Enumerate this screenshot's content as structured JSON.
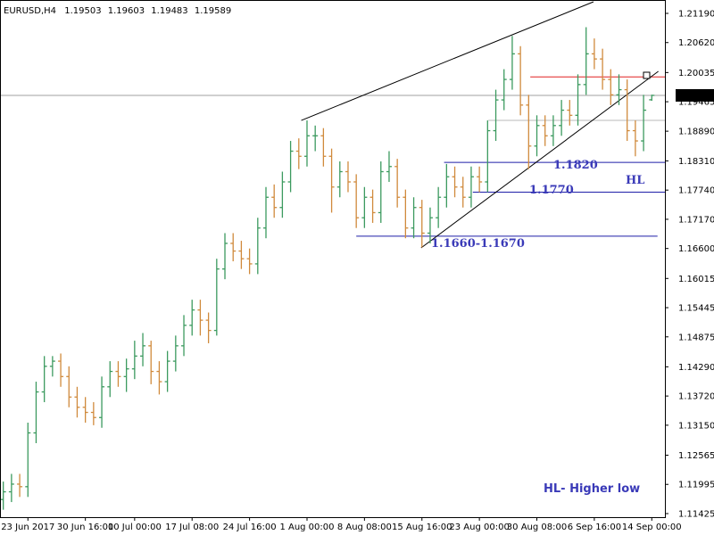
{
  "chart_data": {
    "type": "ohlc",
    "title": "EURUSD,H4",
    "up_color": "#3c9a5f",
    "down_color": "#d08a3c",
    "grid": false,
    "xlim": [
      -0.4,
      80.6
    ],
    "ylim": [
      1.11355,
      1.21451
    ],
    "xticks": [
      {
        "value": 3,
        "label": "23 Jun 2017"
      },
      {
        "value": 10,
        "label": "30 Jun 16:00"
      },
      {
        "value": 16,
        "label": "10 Jul 00:00"
      },
      {
        "value": 23,
        "label": "17 Jul 08:00"
      },
      {
        "value": 30,
        "label": "24 Jul 16:00"
      },
      {
        "value": 37,
        "label": "1 Aug 00:00"
      },
      {
        "value": 44,
        "label": "8 Aug 08:00"
      },
      {
        "value": 51,
        "label": "15 Aug 16:00"
      },
      {
        "value": 58,
        "label": "23 Aug 00:00"
      },
      {
        "value": 65,
        "label": "30 Aug 08:00"
      },
      {
        "value": 72,
        "label": "6 Sep 16:00"
      },
      {
        "value": 79,
        "label": "14 Sep 00:00"
      }
    ],
    "yticks": [
      {
        "value": 1.2119,
        "label": "1.21190"
      },
      {
        "value": 1.2062,
        "label": "1.20620"
      },
      1.20035,
      1.19465,
      {
        "value": 1.1889,
        "label": "1.18890"
      },
      {
        "value": 1.1831,
        "label": "1.18310"
      },
      {
        "value": 1.1774,
        "label": "1.17740"
      },
      {
        "value": 1.1717,
        "label": "1.17170"
      },
      {
        "value": 1.166,
        "label": "1.16600"
      },
      1.16015,
      1.15445,
      1.14875,
      {
        "value": 1.1429,
        "label": "1.14290"
      },
      {
        "value": 1.1372,
        "label": "1.13720"
      },
      {
        "value": 1.1315,
        "label": "1.13150"
      },
      1.12565,
      1.11995,
      1.11425
    ],
    "open": [
      1.117,
      1.1185,
      1.12,
      1.1195,
      1.13,
      1.138,
      1.143,
      1.144,
      1.141,
      1.137,
      1.135,
      1.134,
      1.133,
      1.139,
      1.142,
      1.141,
      1.1425,
      1.145,
      1.147,
      1.142,
      1.14,
      1.144,
      1.147,
      1.151,
      1.154,
      1.152,
      1.15,
      1.162,
      1.167,
      1.1655,
      1.164,
      1.163,
      1.17,
      1.176,
      1.174,
      1.179,
      1.185,
      1.184,
      1.188,
      1.188,
      1.184,
      1.178,
      1.181,
      1.179,
      1.172,
      1.176,
      1.173,
      1.181,
      1.182,
      1.176,
      1.17,
      1.174,
      1.169,
      1.172,
      1.176,
      1.18,
      1.178,
      1.176,
      1.18,
      1.179,
      1.189,
      1.195,
      1.199,
      1.204,
      1.194,
      1.186,
      1.19,
      1.188,
      1.19,
      1.193,
      1.192,
      1.198,
      1.204,
      1.203,
      1.199,
      1.196,
      1.197,
      1.189,
      1.187,
      1.19503
    ],
    "high": [
      1.1205,
      1.122,
      1.122,
      1.132,
      1.14,
      1.145,
      1.145,
      1.1455,
      1.143,
      1.139,
      1.137,
      1.136,
      1.141,
      1.144,
      1.144,
      1.1445,
      1.148,
      1.1495,
      1.148,
      1.144,
      1.146,
      1.149,
      1.153,
      1.156,
      1.156,
      1.1535,
      1.164,
      1.169,
      1.169,
      1.1675,
      1.166,
      1.172,
      1.178,
      1.1785,
      1.181,
      1.187,
      1.1875,
      1.191,
      1.19,
      1.1895,
      1.1855,
      1.183,
      1.183,
      1.1805,
      1.178,
      1.1775,
      1.183,
      1.185,
      1.1835,
      1.1775,
      1.176,
      1.1755,
      1.174,
      1.178,
      1.1825,
      1.182,
      1.18,
      1.182,
      1.182,
      1.191,
      1.197,
      1.201,
      1.2075,
      1.2055,
      1.196,
      1.192,
      1.192,
      1.192,
      1.195,
      1.195,
      1.2,
      1.2092,
      1.207,
      1.205,
      1.201,
      1.2,
      1.199,
      1.191,
      1.196,
      1.19603
    ],
    "low": [
      1.115,
      1.1165,
      1.1175,
      1.1175,
      1.128,
      1.136,
      1.141,
      1.139,
      1.135,
      1.133,
      1.132,
      1.1315,
      1.131,
      1.137,
      1.139,
      1.138,
      1.1405,
      1.143,
      1.1395,
      1.1375,
      1.138,
      1.142,
      1.145,
      1.149,
      1.149,
      1.1475,
      1.149,
      1.16,
      1.1635,
      1.162,
      1.161,
      1.161,
      1.168,
      1.172,
      1.172,
      1.177,
      1.1815,
      1.182,
      1.185,
      1.182,
      1.173,
      1.176,
      1.177,
      1.17,
      1.17,
      1.171,
      1.171,
      1.179,
      1.174,
      1.168,
      1.168,
      1.1662,
      1.167,
      1.17,
      1.174,
      1.176,
      1.174,
      1.174,
      1.177,
      1.177,
      1.187,
      1.193,
      1.197,
      1.192,
      1.1815,
      1.184,
      1.186,
      1.186,
      1.188,
      1.19,
      1.19,
      1.196,
      1.201,
      1.197,
      1.194,
      1.194,
      1.187,
      1.184,
      1.185,
      1.19483
    ],
    "close": [
      1.1185,
      1.12,
      1.1195,
      1.13,
      1.138,
      1.143,
      1.144,
      1.141,
      1.137,
      1.135,
      1.134,
      1.133,
      1.139,
      1.142,
      1.141,
      1.1425,
      1.145,
      1.147,
      1.142,
      1.14,
      1.144,
      1.147,
      1.151,
      1.154,
      1.152,
      1.15,
      1.162,
      1.167,
      1.1655,
      1.164,
      1.163,
      1.17,
      1.176,
      1.174,
      1.179,
      1.185,
      1.184,
      1.188,
      1.188,
      1.184,
      1.178,
      1.181,
      1.179,
      1.172,
      1.176,
      1.173,
      1.181,
      1.182,
      1.176,
      1.17,
      1.174,
      1.169,
      1.172,
      1.176,
      1.18,
      1.178,
      1.176,
      1.18,
      1.179,
      1.189,
      1.195,
      1.199,
      1.204,
      1.194,
      1.186,
      1.19,
      1.188,
      1.19,
      1.193,
      1.192,
      1.198,
      1.204,
      1.203,
      1.199,
      1.196,
      1.197,
      1.189,
      1.187,
      1.193,
      1.19589
    ],
    "hlines": [
      {
        "price": 1.1828,
        "from": 53.7,
        "to": 80.6,
        "color": "#1f1fa8"
      },
      {
        "price": 1.177,
        "from": 57.2,
        "to": 80.6,
        "color": "#1f1fa8"
      },
      {
        "price": 1.1684,
        "from": 43,
        "to": 79.7,
        "color": "#1f1fa8"
      },
      {
        "price": 1.1995,
        "from": 64.2,
        "to": 80.6,
        "color": "#e02020"
      },
      {
        "price": 1.191,
        "from": 59.1,
        "to": 80.6,
        "color": "#b8b8b8"
      }
    ],
    "trendlines": [
      {
        "x": [
          36.3,
          71.9
        ],
        "y": [
          1.191,
          1.21416
        ],
        "color": "#000000"
      },
      {
        "x": [
          50.9,
          79.8
        ],
        "y": [
          1.16612,
          1.20059
        ],
        "color": "#000000"
      }
    ],
    "annotations": [
      "1.1820",
      "1.1770",
      "1.1660-1.1670",
      "HL",
      "HL- Higher low"
    ]
  }
}
